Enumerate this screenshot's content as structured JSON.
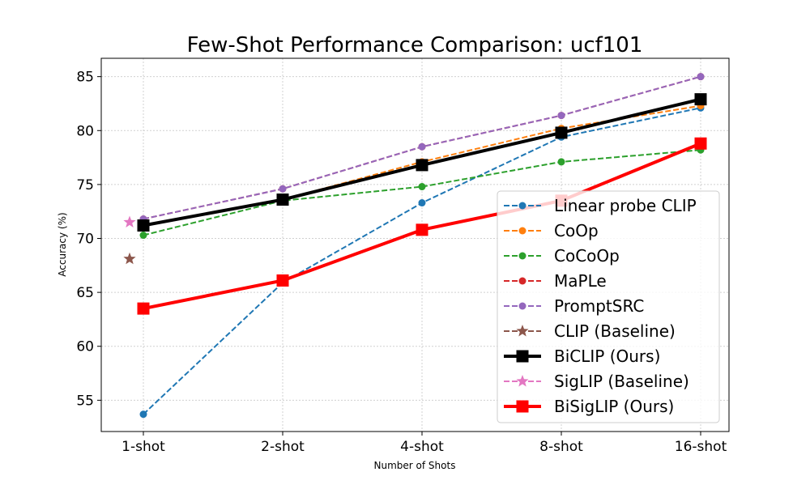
{
  "chart_data": {
    "type": "line",
    "title": "Few-Shot Performance Comparison: ucf101",
    "xlabel": "Number of Shots",
    "ylabel": "Accuracy (%)",
    "categories": [
      "1-shot",
      "2-shot",
      "4-shot",
      "8-shot",
      "16-shot"
    ],
    "ylim": [
      52.1,
      86.7
    ],
    "yticks": [
      55,
      60,
      65,
      70,
      75,
      80,
      85
    ],
    "grid": true,
    "legend_position": "lower-right",
    "series": [
      {
        "name": "Linear probe CLIP",
        "color": "#1f77b4",
        "style": "dashed",
        "marker": "circle",
        "values": [
          53.7,
          65.9,
          73.3,
          79.4,
          82.1
        ]
      },
      {
        "name": "CoOp",
        "color": "#ff7f0e",
        "style": "dashed",
        "marker": "circle",
        "values": [
          71.2,
          73.6,
          77.1,
          80.2,
          82.3
        ]
      },
      {
        "name": "CoCoOp",
        "color": "#2ca02c",
        "style": "dashed",
        "marker": "circle",
        "values": [
          70.3,
          73.5,
          74.8,
          77.1,
          78.2
        ]
      },
      {
        "name": "MaPLe",
        "color": "#d62728",
        "style": "dashed",
        "marker": "circle",
        "values": [
          71.8,
          74.6,
          78.5,
          81.4,
          85.0
        ]
      },
      {
        "name": "PromptSRC",
        "color": "#9467bd",
        "style": "dashed",
        "marker": "circle",
        "values": [
          71.8,
          74.6,
          78.5,
          81.4,
          85.0
        ]
      },
      {
        "name": "CLIP (Baseline)",
        "color": "#8c564b",
        "style": "dashed",
        "marker": "star",
        "point": 68.1
      },
      {
        "name": "BiCLIP (Ours)",
        "color": "#000000",
        "style": "solid",
        "marker": "square",
        "values": [
          71.2,
          73.6,
          76.8,
          79.8,
          82.9
        ]
      },
      {
        "name": "SigLIP (Baseline)",
        "color": "#e377c2",
        "style": "dashed",
        "marker": "star",
        "point": 71.5
      },
      {
        "name": "BiSigLIP (Ours)",
        "color": "#ff0000",
        "style": "solid",
        "marker": "square",
        "values": [
          63.5,
          66.1,
          70.8,
          73.5,
          78.8
        ]
      }
    ]
  }
}
